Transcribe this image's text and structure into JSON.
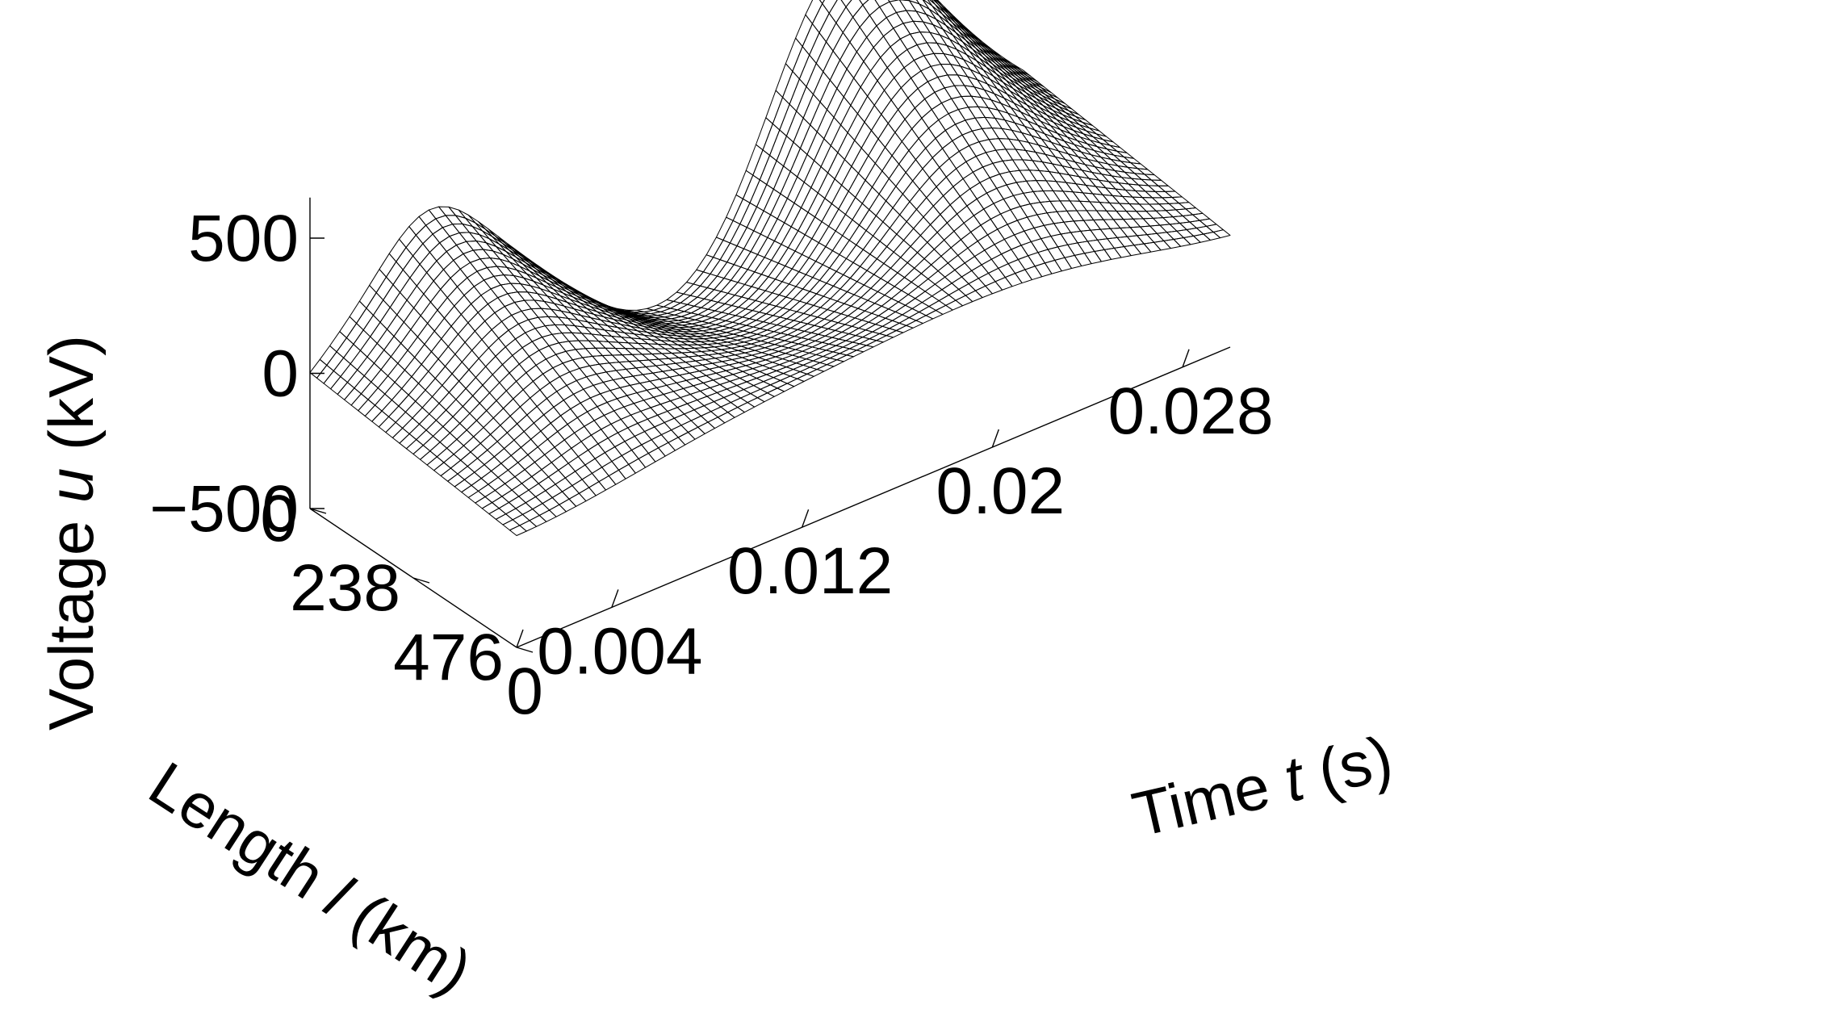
{
  "chart_data": {
    "type": "surface",
    "surface_style": "wireframe mesh",
    "title": "",
    "x_axis": {
      "label_prefix": "Time ",
      "label_var": "t",
      "label_suffix": " (s)",
      "range": [
        0,
        0.03
      ],
      "ticks": [
        0,
        0.004,
        0.012,
        0.02,
        0.028
      ],
      "tick_labels": [
        "0",
        "0.004",
        "0.012",
        "0.02",
        "0.028"
      ]
    },
    "y_axis": {
      "label_prefix": "Length ",
      "label_var": "l",
      "label_suffix": " (km)",
      "range": [
        0,
        476
      ],
      "ticks": [
        0,
        238,
        476
      ],
      "tick_labels": [
        "0",
        "238",
        "476"
      ]
    },
    "z_axis": {
      "label_prefix": "Voltage ",
      "label_var": "u",
      "label_suffix": " (kV)",
      "range": [
        -500,
        500
      ],
      "ticks": [
        500,
        0,
        -500
      ],
      "tick_labels": [
        "500",
        "0",
        "−500"
      ]
    },
    "surface_description_points": [
      {
        "t": 0.0,
        "l": 476,
        "u": 100
      },
      {
        "t": 0.005,
        "l": 0,
        "u": 610
      },
      {
        "t": 0.012,
        "l": 476,
        "u": -30
      },
      {
        "t": 0.022,
        "l": 0,
        "u": 1020
      },
      {
        "t": 0.03,
        "l": 0,
        "u": 120
      },
      {
        "t": 0.03,
        "l": 476,
        "u": 300
      }
    ],
    "grid": false,
    "colors": {
      "mesh": "#000000",
      "fill": "#ffffff",
      "axes": "#000000"
    }
  }
}
